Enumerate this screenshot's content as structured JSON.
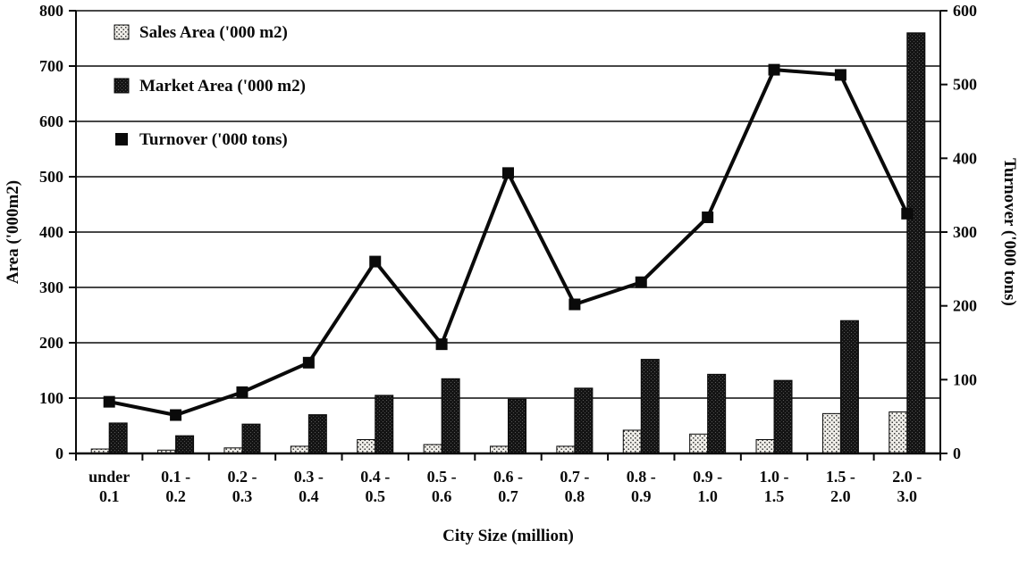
{
  "figure": {
    "background": "#ffffff",
    "ink": "#0a0a0a"
  },
  "chart_data": {
    "type": "combo-bar-line",
    "title": "",
    "xlabel": "City Size (million)",
    "ylabel_left": "Area ('000m2)",
    "ylabel_right": "Turnover ('000 tons)",
    "ylim_left": [
      0,
      800
    ],
    "ylim_right": [
      0,
      600
    ],
    "ytick_step_left": 100,
    "ytick_step_right": 100,
    "grid": "horizontal",
    "legend_position": "inside-top-left",
    "categories": [
      "under 0.1",
      "0.1 - 0.2",
      "0.2 - 0.3",
      "0.3 - 0.4",
      "0.4 - 0.5",
      "0.5 - 0.6",
      "0.6 - 0.7",
      "0.7 - 0.8",
      "0.8 - 0.9",
      "0.9 - 1.0",
      "1.0 - 1.5",
      "1.5 - 2.0",
      "2.0 - 3.0"
    ],
    "category_tick_lines": [
      [
        "under",
        "0.1"
      ],
      [
        "0.1 -",
        "0.2"
      ],
      [
        "0.2 -",
        "0.3"
      ],
      [
        "0.3 -",
        "0.4"
      ],
      [
        "0.4 -",
        "0.5"
      ],
      [
        "0.5 -",
        "0.6"
      ],
      [
        "0.6 -",
        "0.7"
      ],
      [
        "0.7 -",
        "0.8"
      ],
      [
        "0.8 -",
        "0.9"
      ],
      [
        "0.9 -",
        "1.0"
      ],
      [
        "1.0 -",
        "1.5"
      ],
      [
        "1.5 -",
        "2.0"
      ],
      [
        "2.0 -",
        "3.0"
      ]
    ],
    "series": [
      {
        "name": "Sales Area ('000 m2)",
        "type": "bar",
        "axis": "left",
        "fill": "stipple-light",
        "values": [
          8,
          6,
          10,
          13,
          25,
          16,
          13,
          13,
          42,
          35,
          25,
          72,
          75
        ]
      },
      {
        "name": "Market  Area ('000 m2)",
        "type": "bar",
        "axis": "left",
        "fill": "stipple-dark",
        "values": [
          55,
          32,
          53,
          70,
          105,
          135,
          98,
          118,
          170,
          143,
          132,
          240,
          760
        ]
      },
      {
        "name": "Turnover ('000 tons)",
        "type": "line",
        "axis": "right",
        "color": "#0a0a0a",
        "marker": "square",
        "values": [
          70,
          52,
          83,
          123,
          260,
          148,
          380,
          202,
          232,
          320,
          520,
          513,
          325
        ]
      }
    ]
  }
}
